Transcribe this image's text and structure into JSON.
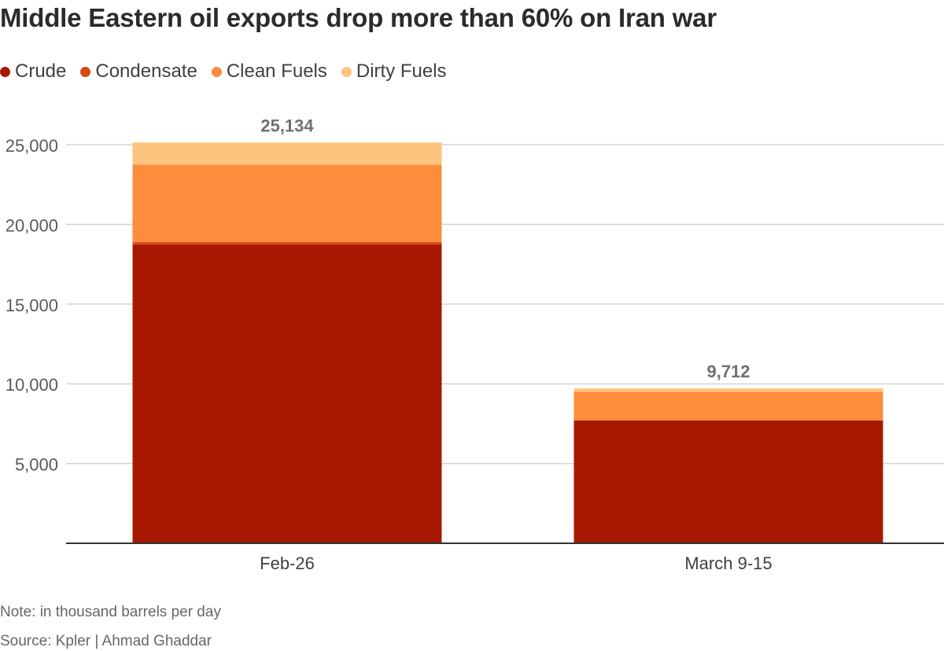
{
  "title": "Middle Eastern oil exports drop more than 60% on Iran war",
  "note": "Note: in thousand barrels per day",
  "source": "Source: Kpler | Ahmad Ghaddar",
  "colors": {
    "crude": "#a61900",
    "condensate": "#d9480f",
    "clean_fuels": "#fd8d3c",
    "dirty_fuels": "#fdc47d",
    "grid": "#d4d4d4",
    "axis": "#333333",
    "tick_text": "#595959",
    "total_label": "#707070"
  },
  "legend": [
    {
      "label": "Crude",
      "color": "#a61900"
    },
    {
      "label": "Condensate",
      "color": "#d9480f"
    },
    {
      "label": "Clean Fuels",
      "color": "#fd8d3c"
    },
    {
      "label": "Dirty Fuels",
      "color": "#fdc47d"
    }
  ],
  "chart_data": {
    "type": "bar",
    "stacked": true,
    "title": "Middle Eastern oil exports drop more than 60% on Iran war",
    "xlabel": "",
    "ylabel": "",
    "categories": [
      "Feb-26",
      "March 9-15"
    ],
    "series": [
      {
        "name": "Crude",
        "values": [
          18750,
          7700
        ]
      },
      {
        "name": "Condensate",
        "values": [
          150,
          30
        ]
      },
      {
        "name": "Clean Fuels",
        "values": [
          4850,
          1770
        ]
      },
      {
        "name": "Dirty Fuels",
        "values": [
          1384,
          212
        ]
      }
    ],
    "totals": [
      25134,
      9712
    ],
    "total_labels": [
      "25,134",
      "9,712"
    ],
    "ylim": [
      0,
      25000
    ],
    "yticks": [
      5000,
      10000,
      15000,
      20000,
      25000
    ],
    "ytick_labels": [
      "5,000",
      "10,000",
      "15,000",
      "20,000",
      "25,000"
    ],
    "grid": true,
    "legend_position": "top-left"
  }
}
